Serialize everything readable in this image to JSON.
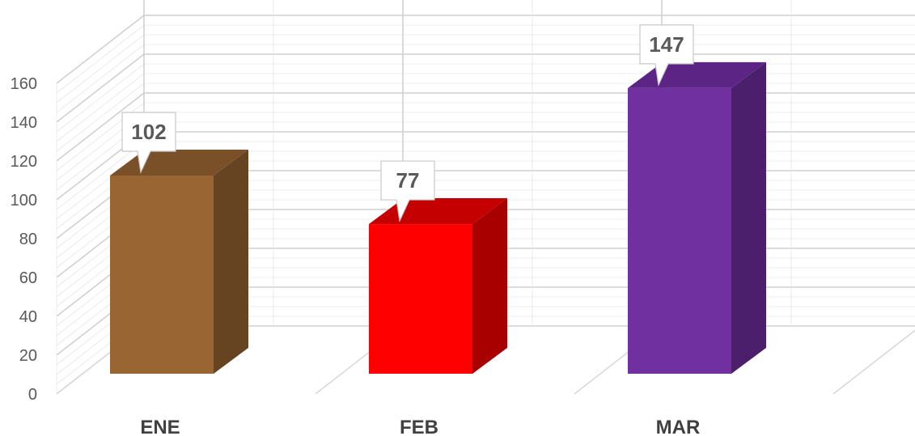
{
  "chart_data": {
    "type": "bar",
    "categories": [
      "ENE",
      "FEB",
      "MAR"
    ],
    "values": [
      102,
      77,
      147
    ],
    "data_labels": [
      "102",
      "77",
      "147"
    ],
    "colors": [
      {
        "front": "#996633",
        "side": "#664422",
        "top": "#7a5028"
      },
      {
        "front": "#ff0000",
        "side": "#a80000",
        "top": "#c40000"
      },
      {
        "front": "#7030a0",
        "side": "#4b1f6c",
        "top": "#5c2585"
      }
    ],
    "ylim": [
      0,
      160
    ],
    "y_ticks": [
      "0",
      "20",
      "40",
      "60",
      "80",
      "100",
      "120",
      "140",
      "160"
    ],
    "grid": true,
    "style": "3d-column"
  }
}
